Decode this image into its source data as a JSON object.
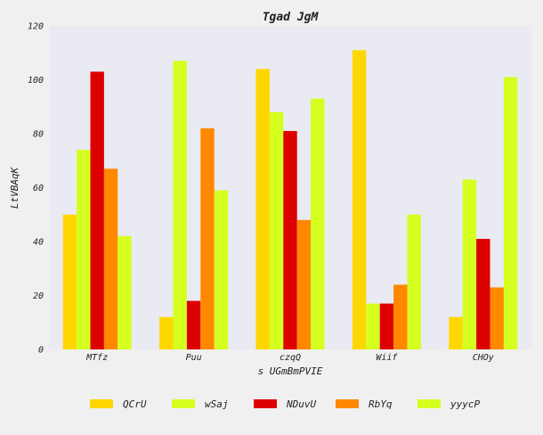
{
  "chart_data": {
    "type": "bar",
    "title": "Tgad JgM",
    "xlabel": "s  UGmBmPVIE",
    "ylabel": "LtVBAqK",
    "ylim": [
      0,
      120
    ],
    "yticks": [
      0,
      20,
      40,
      60,
      80,
      100,
      120
    ],
    "categories": [
      "MTfz",
      "Puu",
      "czqQ",
      "Wiif",
      "CHOy"
    ],
    "series": [
      {
        "name": "QCrU",
        "color": "#ffd700",
        "values": [
          50,
          12,
          104,
          111,
          12
        ]
      },
      {
        "name": "wSaj",
        "color": "#d4ff1f",
        "values": [
          74,
          107,
          88,
          17,
          63
        ]
      },
      {
        "name": "NDuvU",
        "color": "#dd0000",
        "values": [
          103,
          18,
          81,
          17,
          41
        ]
      },
      {
        "name": "RbYq",
        "color": "#ff8800",
        "values": [
          67,
          82,
          48,
          24,
          23
        ]
      },
      {
        "name": "yyycP",
        "color": "#d4ff1f",
        "values": [
          42,
          59,
          93,
          50,
          101
        ]
      }
    ],
    "grid": false,
    "legend_position": "bottom"
  }
}
